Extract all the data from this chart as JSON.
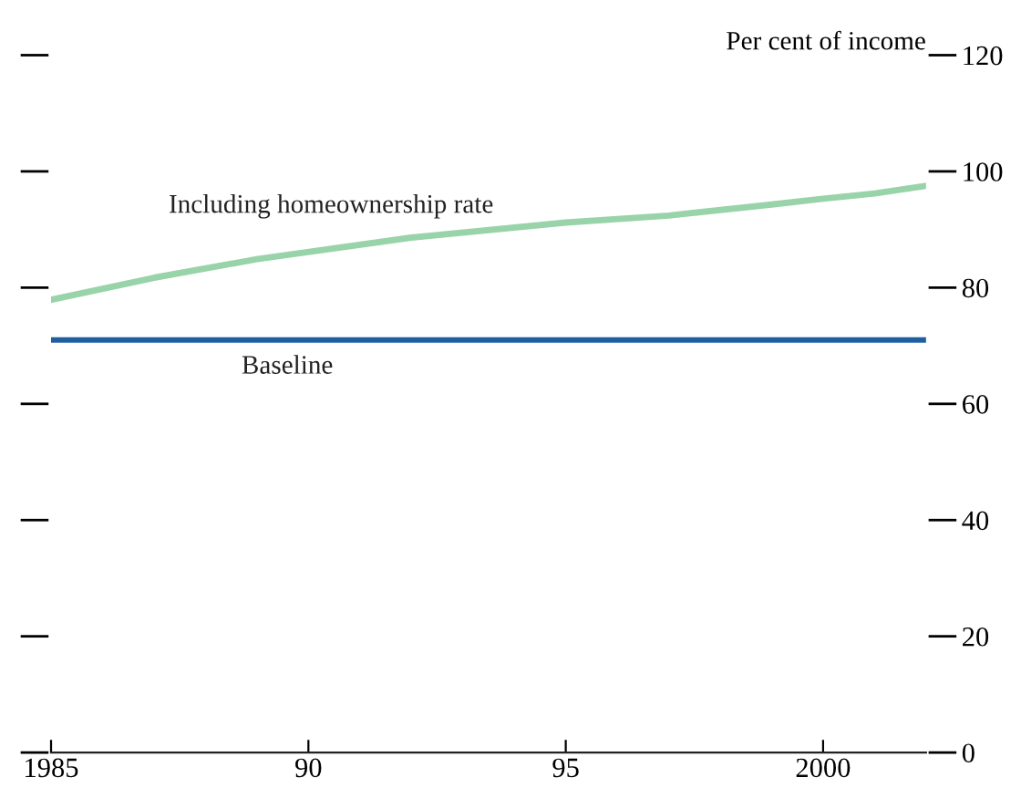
{
  "chart_data": {
    "type": "line",
    "ylabel": "Per cent of income",
    "x": [
      1985,
      1987,
      1989,
      1992,
      1995,
      1997,
      1999,
      2000,
      2001,
      2002
    ],
    "series": [
      {
        "name": "Including homeownership rate",
        "color": "#99d3aa",
        "values": [
          77.9,
          81.7,
          84.9,
          88.6,
          91.2,
          92.4,
          94.3,
          95.3,
          96.2,
          97.5
        ]
      },
      {
        "name": "Baseline",
        "color": "#1f5fa0",
        "values": [
          71,
          71,
          71,
          71,
          71,
          71,
          71,
          71,
          71,
          71
        ]
      }
    ],
    "xlim": [
      1985,
      2002
    ],
    "xticks": [
      1985,
      {
        "value": 1990,
        "label": "90"
      },
      {
        "value": 1995,
        "label": "95"
      },
      2000
    ],
    "ylim": [
      0,
      120
    ],
    "yticks": [
      0,
      20,
      40,
      60,
      80,
      100,
      120
    ],
    "grid": false,
    "legend": false,
    "marker": "none",
    "line_style": "solid"
  }
}
